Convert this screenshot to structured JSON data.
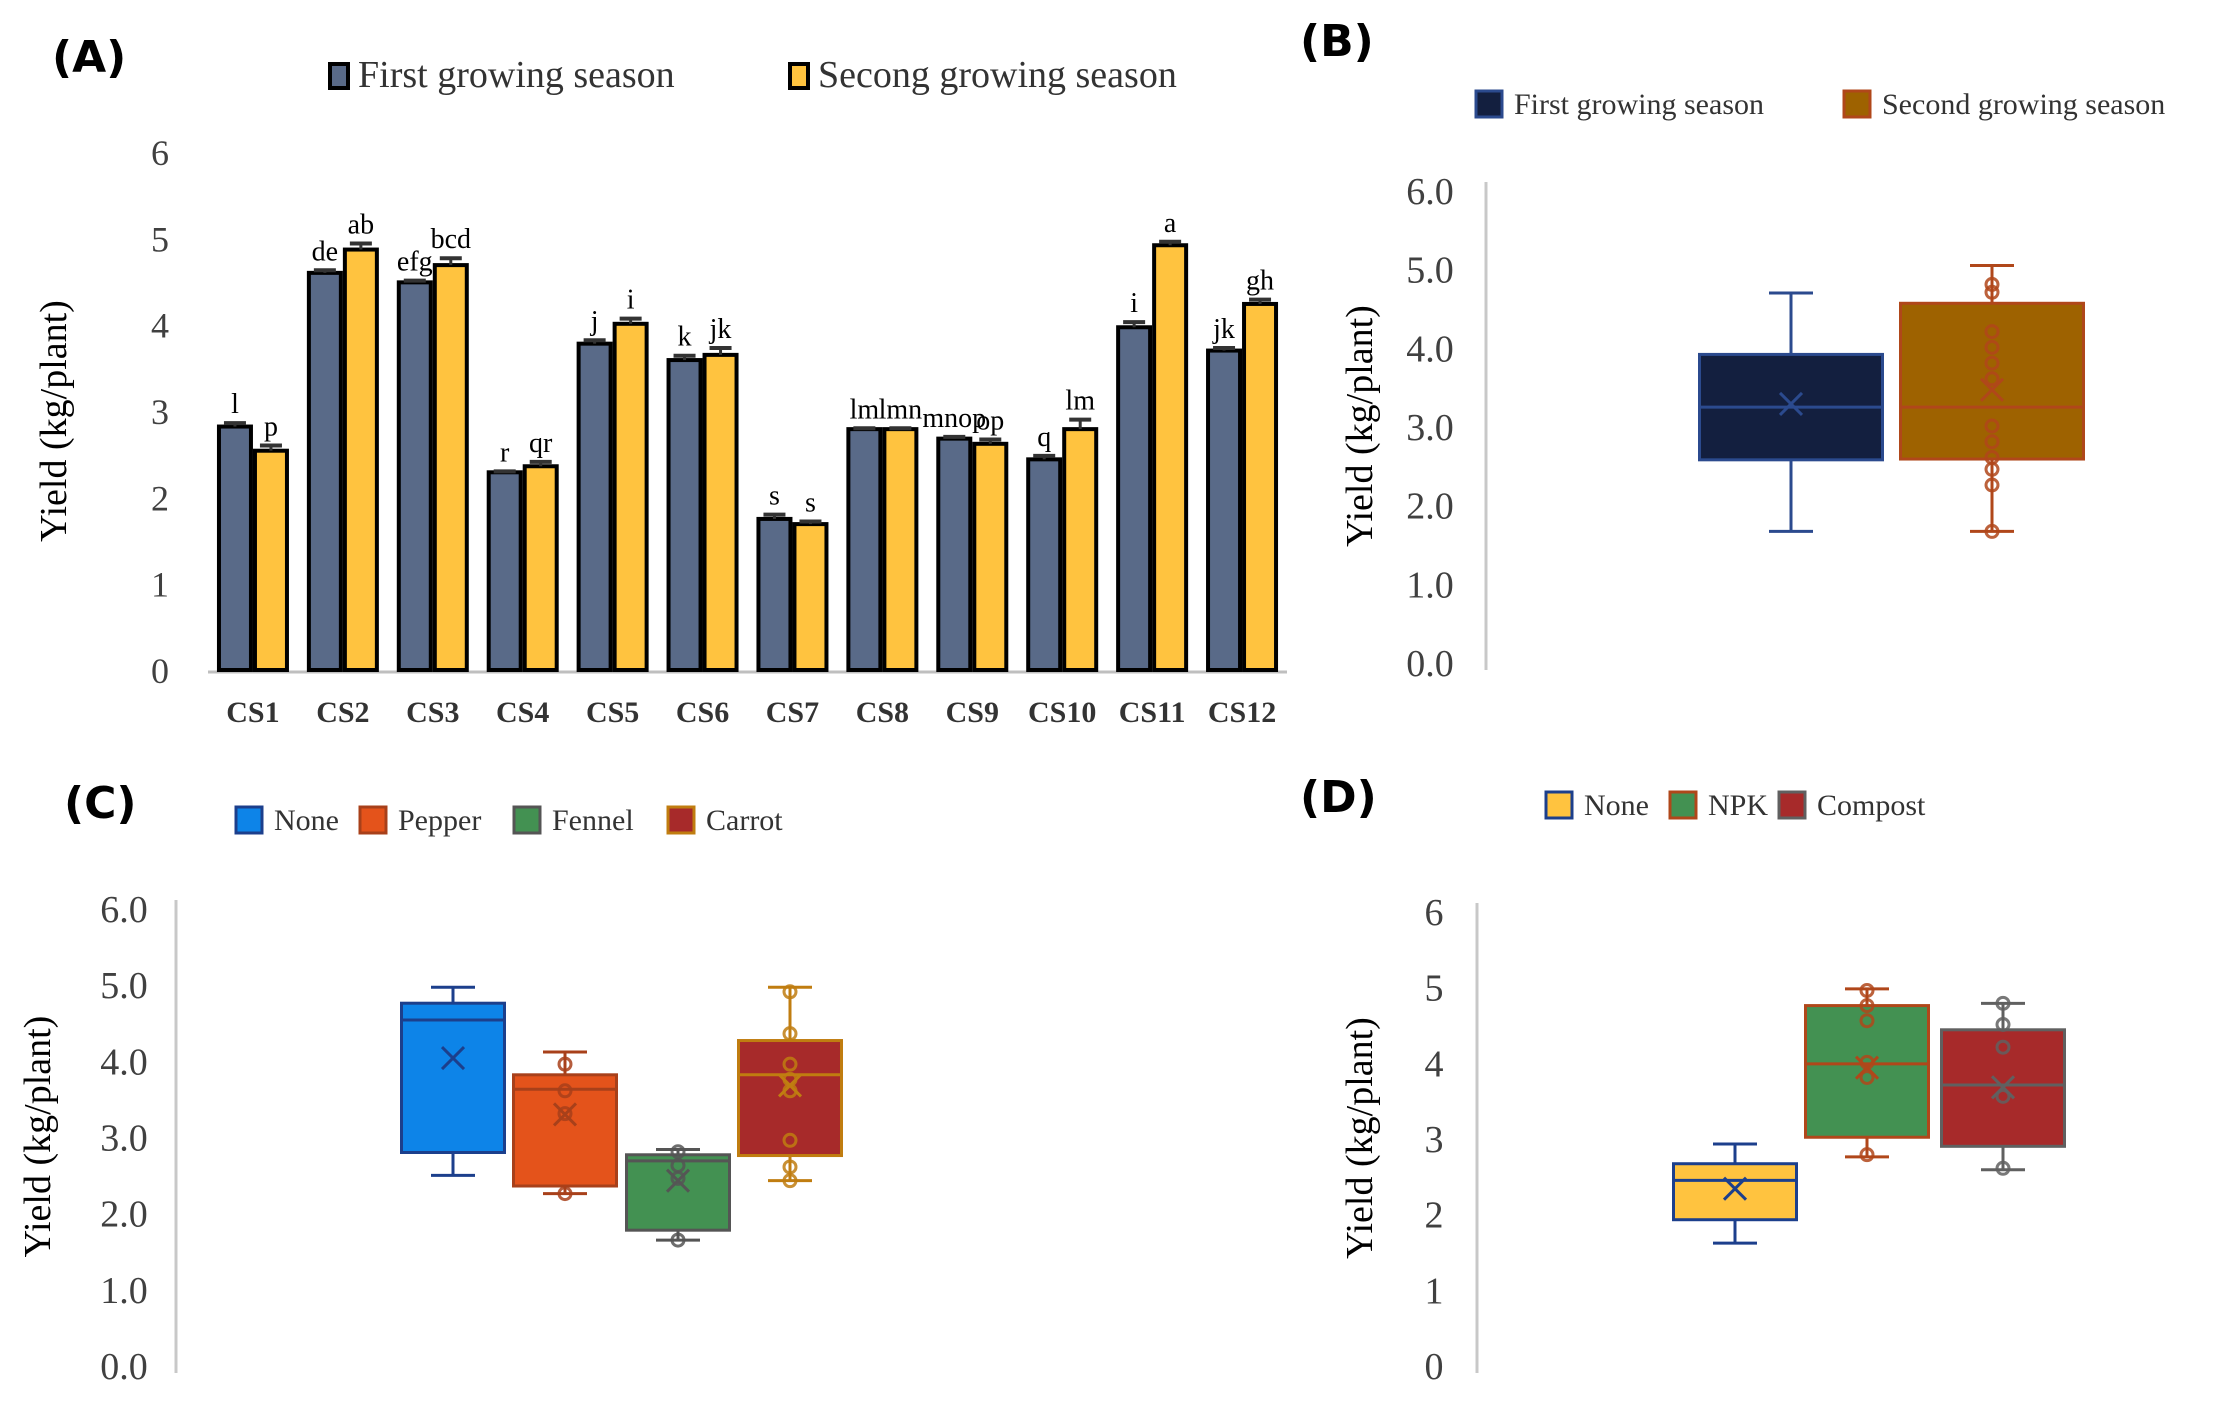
{
  "panels": {
    "A": {
      "label": "(A)"
    },
    "B": {
      "label": "(B)"
    },
    "C": {
      "label": "(C)"
    },
    "D": {
      "label": "(D)"
    }
  },
  "chart_data": [
    {
      "id": "A",
      "type": "bar",
      "title": "",
      "xlabel": "",
      "ylabel": "Yield (kg/plant)",
      "ylim": [
        0,
        6
      ],
      "yticks": [
        "0",
        "1",
        "2",
        "3",
        "4",
        "5",
        "6"
      ],
      "grid": false,
      "legend_position": "top",
      "categories": [
        "CS1",
        "CS2",
        "CS3",
        "CS4",
        "CS5",
        "CS6",
        "CS7",
        "CS8",
        "CS9",
        "CS10",
        "CS11",
        "CS12"
      ],
      "series": [
        {
          "name": "First growing season",
          "color": "#596a88",
          "values": [
            2.82,
            4.6,
            4.49,
            2.29,
            3.78,
            3.59,
            1.75,
            2.79,
            2.68,
            2.44,
            3.97,
            3.7
          ],
          "errors": [
            0.04,
            0.03,
            0.02,
            0.01,
            0.04,
            0.05,
            0.05,
            0.01,
            0.02,
            0.04,
            0.06,
            0.03
          ],
          "letters": [
            "l",
            "de",
            "efg",
            "r",
            "j",
            "k",
            "s",
            "lm",
            "mnop",
            "q",
            "i",
            "jk"
          ]
        },
        {
          "name": "Secong growing season",
          "color": "#ffc33f",
          "values": [
            2.54,
            4.87,
            4.69,
            2.36,
            4.01,
            3.65,
            1.69,
            2.79,
            2.62,
            2.79,
            4.92,
            4.24
          ],
          "errors": [
            0.06,
            0.07,
            0.08,
            0.05,
            0.06,
            0.08,
            0.03,
            0.01,
            0.05,
            0.11,
            0.04,
            0.05
          ],
          "letters": [
            "p",
            "ab",
            "bcd",
            "qr",
            "i",
            "jk",
            "s",
            "lmn",
            "op",
            "lm",
            "a",
            "gh"
          ]
        }
      ]
    },
    {
      "id": "B",
      "type": "box",
      "title": "",
      "ylabel": "Yield (kg/plant)",
      "ylim": [
        0,
        6
      ],
      "yticks": [
        "0.0",
        "1.0",
        "2.0",
        "3.0",
        "4.0",
        "5.0",
        "6.0"
      ],
      "legend_position": "top",
      "series": [
        {
          "name": "First growing season",
          "fill": "#131f3f",
          "stroke": "#2b4a8e",
          "min": 1.66,
          "q1": 2.57,
          "median": 3.24,
          "mean": 3.28,
          "q3": 3.91,
          "max": 4.69,
          "points": []
        },
        {
          "name": "Second growing season",
          "fill": "#9e6200",
          "stroke": "#b0471a",
          "min": 1.66,
          "q1": 2.58,
          "median": 3.24,
          "mean": 3.46,
          "q3": 4.56,
          "max": 5.04,
          "points": [
            1.66,
            2.25,
            2.45,
            2.6,
            2.8,
            3.0,
            3.6,
            3.8,
            4.0,
            4.2,
            4.7,
            4.8
          ]
        }
      ]
    },
    {
      "id": "C",
      "type": "box",
      "title": "",
      "ylabel": "Yield (kg/plant)",
      "ylim": [
        0,
        6
      ],
      "yticks": [
        "0.0",
        "1.0",
        "2.0",
        "3.0",
        "4.0",
        "5.0",
        "6.0"
      ],
      "legend_position": "top",
      "series": [
        {
          "name": "None",
          "fill": "#0d84e8",
          "stroke": "#1c3f8c",
          "min": 2.49,
          "q1": 2.79,
          "median": 4.53,
          "mean": 4.03,
          "q3": 4.75,
          "max": 4.96,
          "points": []
        },
        {
          "name": "Pepper",
          "fill": "#e4531b",
          "stroke": "#a8401a",
          "min": 2.25,
          "q1": 2.35,
          "median": 3.62,
          "mean": 3.29,
          "q3": 3.81,
          "max": 4.11,
          "points": [
            2.25,
            3.3,
            3.6,
            3.95
          ]
        },
        {
          "name": "Fennel",
          "fill": "#439152",
          "stroke": "#555555",
          "min": 1.64,
          "q1": 1.77,
          "median": 2.68,
          "mean": 2.42,
          "q3": 2.76,
          "max": 2.83,
          "points": [
            1.64,
            2.45,
            2.62,
            2.8
          ]
        },
        {
          "name": "Carrot",
          "fill": "#a72a2a",
          "stroke": "#c07d10",
          "min": 2.42,
          "q1": 2.75,
          "median": 3.81,
          "mean": 3.67,
          "q3": 4.26,
          "max": 4.96,
          "points": [
            2.42,
            2.6,
            2.95,
            3.6,
            3.75,
            3.95,
            4.35,
            4.9
          ]
        }
      ]
    },
    {
      "id": "D",
      "type": "box",
      "title": "",
      "ylabel": "Yield (kg/plant)",
      "ylim": [
        0,
        6
      ],
      "yticks": [
        "0",
        "1",
        "2",
        "3",
        "4",
        "5",
        "6"
      ],
      "legend_position": "top",
      "series": [
        {
          "name": "None",
          "fill": "#ffc33f",
          "stroke": "#1c3f8c",
          "min": 1.61,
          "q1": 1.92,
          "median": 2.44,
          "mean": 2.33,
          "q3": 2.66,
          "max": 2.92,
          "points": []
        },
        {
          "name": "NPK",
          "fill": "#439152",
          "stroke": "#b0471a",
          "min": 2.75,
          "q1": 3.01,
          "median": 3.98,
          "mean": 3.93,
          "q3": 4.75,
          "max": 4.97,
          "points": [
            2.78,
            3.8,
            4.0,
            4.55,
            4.75,
            4.95
          ]
        },
        {
          "name": "Compost",
          "fill": "#a72a2a",
          "stroke": "#606060",
          "min": 2.58,
          "q1": 2.89,
          "median": 3.7,
          "mean": 3.67,
          "q3": 4.43,
          "max": 4.78,
          "points": [
            2.6,
            3.55,
            4.2,
            4.5,
            4.78
          ]
        }
      ]
    }
  ]
}
